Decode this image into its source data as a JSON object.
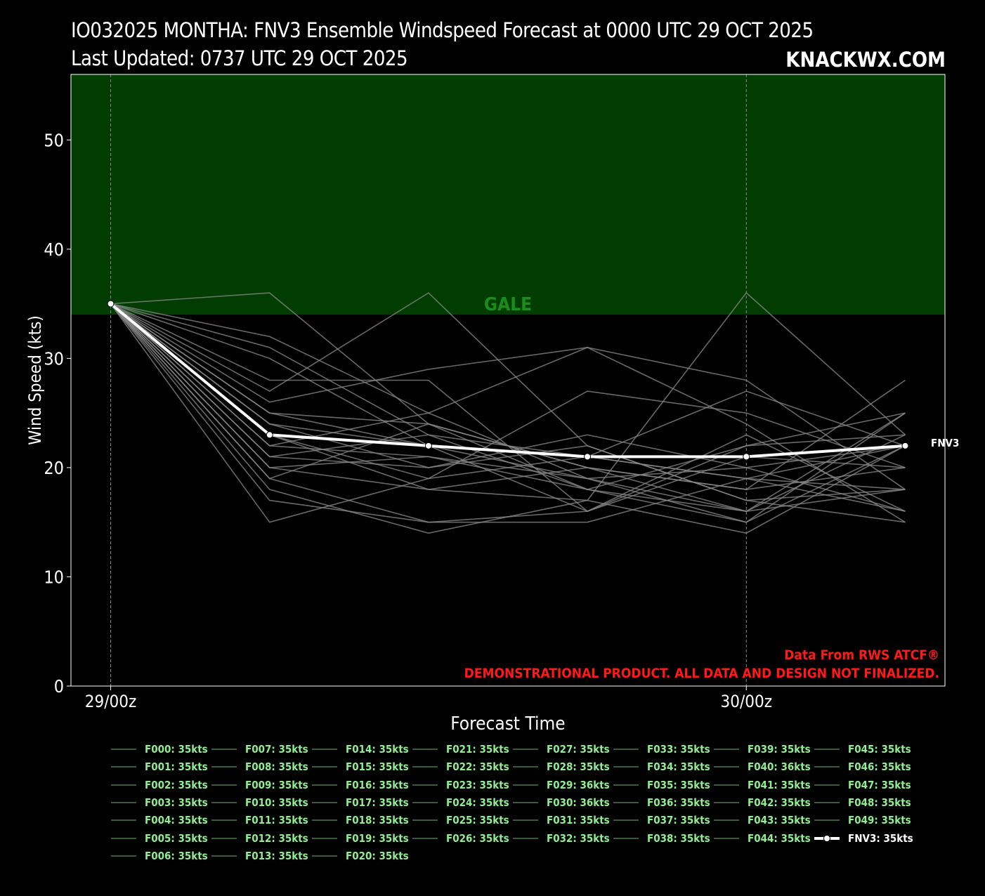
{
  "header": {
    "title_line1": "IO032025 MONTHA: FNV3 Ensemble Windspeed Forecast at 0000 UTC 29 OCT 2025",
    "title_line2": "Last Updated: 0737 UTC 29 OCT 2025",
    "brand": "KNACKWX.COM"
  },
  "annotations": {
    "gale_label": "GALE",
    "source": "Data From RWS ATCF®",
    "disclaimer": "DEMONSTRATIONAL PRODUCT. ALL DATA AND DESIGN NOT FINALIZED.",
    "series_end_label": "FNV3"
  },
  "colors": {
    "background": "#000000",
    "gale_band": "#013d00",
    "gale_text": "#1a8c1a",
    "member_line": "#8a8a8a",
    "mean_line": "#ffffff",
    "legend_text": "#90ee90",
    "disclaimer_text": "#ff1a1a"
  },
  "chart_data": {
    "type": "line",
    "xlabel": "Forecast Time",
    "ylabel": "Wind Speed (kts)",
    "x_hours": [
      0,
      6,
      12,
      18,
      24,
      30
    ],
    "x_tick_hours": [
      0,
      24
    ],
    "x_tick_labels": [
      "29/00z",
      "30/00z"
    ],
    "xlim_hours": [
      -1.5,
      31.5
    ],
    "ylim": [
      0,
      56
    ],
    "y_ticks": [
      0,
      10,
      20,
      30,
      40,
      50
    ],
    "gale_band": [
      34,
      56
    ],
    "members": [
      [
        35,
        36,
        24,
        18,
        16,
        23
      ],
      [
        35,
        32,
        25,
        19,
        15,
        25
      ],
      [
        35,
        31,
        23,
        21,
        19,
        22
      ],
      [
        35,
        30,
        22,
        16,
        21,
        20
      ],
      [
        35,
        28,
        28,
        16,
        22,
        25
      ],
      [
        35,
        27,
        36,
        22,
        17,
        18
      ],
      [
        35,
        26,
        29,
        31,
        24,
        15
      ],
      [
        35,
        25,
        24,
        20,
        18,
        28
      ],
      [
        35,
        24,
        22,
        21,
        19,
        16
      ],
      [
        35,
        24,
        20,
        23,
        20,
        22
      ],
      [
        35,
        23,
        19,
        27,
        25,
        20
      ],
      [
        35,
        22,
        25,
        31,
        28,
        18
      ],
      [
        35,
        22,
        21,
        19,
        16,
        25
      ],
      [
        35,
        21,
        23,
        18,
        15,
        22
      ],
      [
        35,
        21,
        20,
        22,
        17,
        15
      ],
      [
        35,
        20,
        18,
        17,
        14,
        22
      ],
      [
        35,
        19,
        15,
        16,
        23,
        16
      ],
      [
        35,
        18,
        14,
        17,
        36,
        23
      ],
      [
        35,
        17,
        15,
        15,
        19,
        18
      ],
      [
        35,
        15,
        19,
        21,
        27,
        22
      ],
      [
        35,
        19,
        24,
        20,
        18,
        20
      ],
      [
        35,
        20,
        21,
        18,
        22,
        23
      ],
      [
        35,
        23,
        18,
        20,
        16,
        18
      ],
      [
        35,
        25,
        22,
        19,
        20,
        16
      ]
    ],
    "series": [
      {
        "name": "FNV3",
        "values": [
          35,
          23,
          22,
          21,
          21,
          22
        ]
      }
    ]
  },
  "legend": {
    "items": [
      "F000: 35kts",
      "F001: 35kts",
      "F002: 35kts",
      "F003: 35kts",
      "F004: 35kts",
      "F005: 35kts",
      "F006: 35kts",
      "F007: 35kts",
      "F008: 35kts",
      "F009: 35kts",
      "F010: 35kts",
      "F011: 35kts",
      "F012: 35kts",
      "F013: 35kts",
      "F014: 35kts",
      "F015: 35kts",
      "F016: 35kts",
      "F017: 35kts",
      "F018: 35kts",
      "F019: 35kts",
      "F020: 35kts",
      "F021: 35kts",
      "F022: 35kts",
      "F023: 35kts",
      "F024: 35kts",
      "F025: 35kts",
      "F026: 35kts",
      "F027: 35kts",
      "F028: 35kts",
      "F029: 36kts",
      "F030: 36kts",
      "F031: 35kts",
      "F032: 35kts",
      "F033: 35kts",
      "F034: 35kts",
      "F035: 35kts",
      "F036: 35kts",
      "F037: 35kts",
      "F038: 35kts",
      "F039: 35kts",
      "F040: 36kts",
      "F041: 35kts",
      "F042: 35kts",
      "F043: 35kts",
      "F044: 35kts",
      "F045: 35kts",
      "F046: 35kts",
      "F047: 35kts",
      "F048: 35kts",
      "F049: 35kts",
      "FNV3: 35kts"
    ],
    "column_lengths": [
      7,
      7,
      7,
      6,
      6,
      6,
      6,
      6
    ]
  }
}
